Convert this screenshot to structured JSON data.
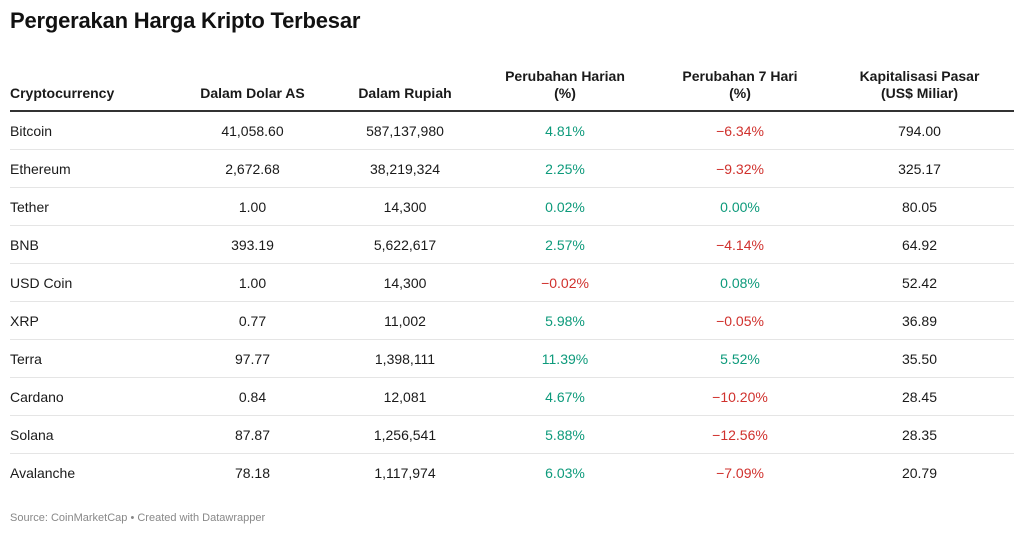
{
  "title": "Pergerakan Harga Kripto Terbesar",
  "headers": {
    "crypto": "Cryptocurrency",
    "usd": "Dalam Dolar AS",
    "idr": "Dalam Rupiah",
    "daily_1": "Perubahan Harian",
    "daily_2": "(%)",
    "weekly_1": "Perubahan 7 Hari",
    "weekly_2": "(%)",
    "cap_1": "Kapitalisasi Pasar",
    "cap_2": "(US$ Miliar)"
  },
  "rows": [
    {
      "name": "Bitcoin",
      "usd": "41,058.60",
      "idr": "587,137,980",
      "daily": "4.81%",
      "daily_sign": "pos",
      "weekly": "−6.34%",
      "weekly_sign": "neg",
      "cap": "794.00"
    },
    {
      "name": "Ethereum",
      "usd": "2,672.68",
      "idr": "38,219,324",
      "daily": "2.25%",
      "daily_sign": "pos",
      "weekly": "−9.32%",
      "weekly_sign": "neg",
      "cap": "325.17"
    },
    {
      "name": "Tether",
      "usd": "1.00",
      "idr": "14,300",
      "daily": "0.02%",
      "daily_sign": "pos",
      "weekly": "0.00%",
      "weekly_sign": "pos",
      "cap": "80.05"
    },
    {
      "name": "BNB",
      "usd": "393.19",
      "idr": "5,622,617",
      "daily": "2.57%",
      "daily_sign": "pos",
      "weekly": "−4.14%",
      "weekly_sign": "neg",
      "cap": "64.92"
    },
    {
      "name": "USD Coin",
      "usd": "1.00",
      "idr": "14,300",
      "daily": "−0.02%",
      "daily_sign": "neg",
      "weekly": "0.08%",
      "weekly_sign": "pos",
      "cap": "52.42"
    },
    {
      "name": "XRP",
      "usd": "0.77",
      "idr": "11,002",
      "daily": "5.98%",
      "daily_sign": "pos",
      "weekly": "−0.05%",
      "weekly_sign": "neg",
      "cap": "36.89"
    },
    {
      "name": "Terra",
      "usd": "97.77",
      "idr": "1,398,111",
      "daily": "11.39%",
      "daily_sign": "pos",
      "weekly": "5.52%",
      "weekly_sign": "pos",
      "cap": "35.50"
    },
    {
      "name": "Cardano",
      "usd": "0.84",
      "idr": "12,081",
      "daily": "4.67%",
      "daily_sign": "pos",
      "weekly": "−10.20%",
      "weekly_sign": "neg",
      "cap": "28.45"
    },
    {
      "name": "Solana",
      "usd": "87.87",
      "idr": "1,256,541",
      "daily": "5.88%",
      "daily_sign": "pos",
      "weekly": "−12.56%",
      "weekly_sign": "neg",
      "cap": "28.35"
    },
    {
      "name": "Avalanche",
      "usd": "78.18",
      "idr": "1,117,974",
      "daily": "6.03%",
      "daily_sign": "pos",
      "weekly": "−7.09%",
      "weekly_sign": "neg",
      "cap": "20.79"
    }
  ],
  "colors": {
    "positive": "#0d9a7b",
    "negative": "#d0312d"
  },
  "footer": "Source: CoinMarketCap • Created with Datawrapper"
}
